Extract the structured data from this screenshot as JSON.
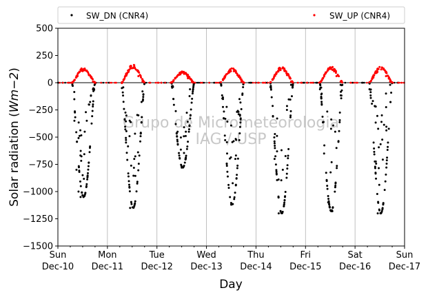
{
  "chart_data": {
    "type": "scatter",
    "xlabel": "Day",
    "ylabel": "Solar radiation (Wm−2)",
    "ylabel_parts": {
      "prefix": "Solar radiation (",
      "units": "Wm−2",
      "suffix": ")"
    },
    "ylim": [
      -1500,
      500
    ],
    "yticks": [
      -1500,
      -1250,
      -1000,
      -750,
      -500,
      -250,
      0,
      250,
      500
    ],
    "ytick_labels": [
      "−1500",
      "−1250",
      "−1000",
      "−750",
      "−500",
      "−250",
      "0",
      "250",
      "500"
    ],
    "xlim": [
      "2023-12-10 00:00",
      "2023-12-17 00:00"
    ],
    "xticks": [
      {
        "weekday": "Sun",
        "date": "Dec-10"
      },
      {
        "weekday": "Mon",
        "date": "Dec-11"
      },
      {
        "weekday": "Tue",
        "date": "Dec-12"
      },
      {
        "weekday": "Wed",
        "date": "Dec-13"
      },
      {
        "weekday": "Thu",
        "date": "Dec-14"
      },
      {
        "weekday": "Fri",
        "date": "Dec-15"
      },
      {
        "weekday": "Sat",
        "date": "Dec-16"
      },
      {
        "weekday": "Sun",
        "date": "Dec-17"
      }
    ],
    "grid": "vertical",
    "legend_position": "top",
    "watermark": [
      "Grupo de Micrometeorologia",
      "IAG / USP"
    ],
    "series": [
      {
        "name": "SW_DN (CNR4)",
        "color": "#000000",
        "marker": "dot",
        "daily_peak": [
          -1050,
          -1150,
          -780,
          -1120,
          -1200,
          -1180,
          -1200
        ],
        "x": [
          "2023-12-10 07:00",
          "2023-12-10 08:00",
          "2023-12-10 09:00",
          "2023-12-10 10:00",
          "2023-12-10 11:00",
          "2023-12-10 12:00",
          "2023-12-10 13:00",
          "2023-12-10 14:00",
          "2023-12-10 15:00",
          "2023-12-10 16:00",
          "2023-12-10 17:00",
          "2023-12-10 18:00",
          "2023-12-11 07:00",
          "2023-12-11 09:00",
          "2023-12-11 11:00",
          "2023-12-11 13:00",
          "2023-12-11 15:00",
          "2023-12-11 17:00",
          "2023-12-12 08:00",
          "2023-12-12 10:00",
          "2023-12-12 12:00",
          "2023-12-12 14:00",
          "2023-12-12 16:00",
          "2023-12-13 08:00",
          "2023-12-13 10:00",
          "2023-12-13 12:00",
          "2023-12-13 14:00",
          "2023-12-13 16:00",
          "2023-12-14 07:00",
          "2023-12-14 09:00",
          "2023-12-14 11:00",
          "2023-12-14 13:00",
          "2023-12-14 15:00",
          "2023-12-14 17:00",
          "2023-12-15 07:00",
          "2023-12-15 09:00",
          "2023-12-15 11:00",
          "2023-12-15 13:00",
          "2023-12-15 15:00",
          "2023-12-15 17:00",
          "2023-12-16 07:00",
          "2023-12-16 09:00",
          "2023-12-16 11:00",
          "2023-12-16 13:00",
          "2023-12-16 15:00",
          "2023-12-16 17:00"
        ],
        "y": [
          -20,
          -350,
          -800,
          -1000,
          -1050,
          -850,
          -450,
          -350,
          -200,
          -120,
          -60,
          -10,
          -50,
          -550,
          -1150,
          -700,
          -300,
          -80,
          -150,
          -450,
          -780,
          -450,
          -60,
          -150,
          -650,
          -1120,
          -700,
          -150,
          -40,
          -700,
          -1200,
          -800,
          -250,
          -20,
          -60,
          -650,
          -1100,
          -1180,
          -600,
          -20,
          -60,
          -550,
          -1200,
          -300,
          -100,
          -20
        ]
      },
      {
        "name": "SW_UP (CNR4)",
        "color": "#ff0000",
        "marker": "dot",
        "daily_peak": [
          130,
          160,
          100,
          130,
          140,
          140,
          140
        ],
        "x": [
          "2023-12-10 07:00",
          "2023-12-10 09:00",
          "2023-12-10 11:00",
          "2023-12-10 13:00",
          "2023-12-10 15:00",
          "2023-12-10 17:00",
          "2023-12-11 07:00",
          "2023-12-11 09:00",
          "2023-12-11 11:00",
          "2023-12-11 13:00",
          "2023-12-11 15:00",
          "2023-12-11 17:00",
          "2023-12-12 07:00",
          "2023-12-12 09:00",
          "2023-12-12 11:00",
          "2023-12-12 13:00",
          "2023-12-12 15:00",
          "2023-12-12 17:00",
          "2023-12-13 07:00",
          "2023-12-13 09:00",
          "2023-12-13 11:00",
          "2023-12-13 13:00",
          "2023-12-13 15:00",
          "2023-12-13 17:00",
          "2023-12-14 07:00",
          "2023-12-14 09:00",
          "2023-12-14 11:00",
          "2023-12-14 13:00",
          "2023-12-14 15:00",
          "2023-12-14 17:00",
          "2023-12-15 07:00",
          "2023-12-15 09:00",
          "2023-12-15 11:00",
          "2023-12-15 13:00",
          "2023-12-15 15:00",
          "2023-12-15 17:00",
          "2023-12-16 07:00",
          "2023-12-16 09:00",
          "2023-12-16 11:00",
          "2023-12-16 13:00",
          "2023-12-16 15:00",
          "2023-12-16 17:00"
        ],
        "y": [
          5,
          60,
          120,
          130,
          70,
          10,
          5,
          80,
          150,
          160,
          60,
          10,
          5,
          40,
          90,
          100,
          40,
          5,
          5,
          60,
          110,
          130,
          70,
          10,
          5,
          70,
          130,
          140,
          70,
          10,
          5,
          70,
          130,
          140,
          60,
          10,
          5,
          70,
          130,
          140,
          60,
          10
        ]
      }
    ]
  }
}
